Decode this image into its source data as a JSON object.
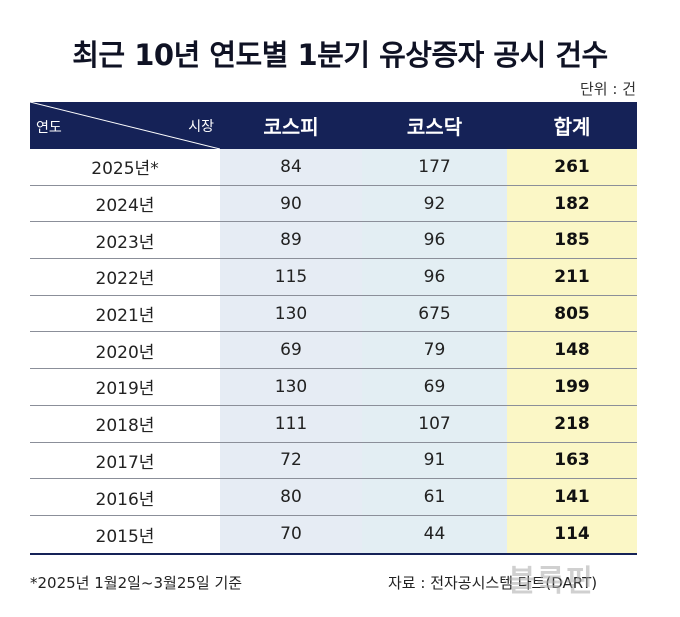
{
  "title": "최근 10년 연도별 1분기 유상증자 공시 건수",
  "unit": "단위 : 건",
  "header": {
    "row_label": "연도",
    "col_label": "시장",
    "columns": [
      "코스피",
      "코스닥",
      "합계"
    ]
  },
  "rows": [
    {
      "year": "2025년*",
      "kospi": "84",
      "kosdaq": "177",
      "total": "261"
    },
    {
      "year": "2024년",
      "kospi": "90",
      "kosdaq": "92",
      "total": "182"
    },
    {
      "year": "2023년",
      "kospi": "89",
      "kosdaq": "96",
      "total": "185"
    },
    {
      "year": "2022년",
      "kospi": "115",
      "kosdaq": "96",
      "total": "211"
    },
    {
      "year": "2021년",
      "kospi": "130",
      "kosdaq": "675",
      "total": "805"
    },
    {
      "year": "2020년",
      "kospi": "69",
      "kosdaq": "79",
      "total": "148"
    },
    {
      "year": "2019년",
      "kospi": "130",
      "kosdaq": "69",
      "total": "199"
    },
    {
      "year": "2018년",
      "kospi": "111",
      "kosdaq": "107",
      "total": "218"
    },
    {
      "year": "2017년",
      "kospi": "72",
      "kosdaq": "91",
      "total": "163"
    },
    {
      "year": "2016년",
      "kospi": "80",
      "kosdaq": "61",
      "total": "141"
    },
    {
      "year": "2015년",
      "kospi": "70",
      "kosdaq": "44",
      "total": "114"
    }
  ],
  "footnote": "*2025년 1월2일~3월25일 기준",
  "source": "자료 : 전자공시스템 다트(DART)",
  "watermark": "블록핀",
  "colors": {
    "header_bg": "#152257",
    "kospi_bg": "#e6ecf4",
    "kosdaq_bg": "#e3eef3",
    "total_bg": "#fbf7c6"
  }
}
